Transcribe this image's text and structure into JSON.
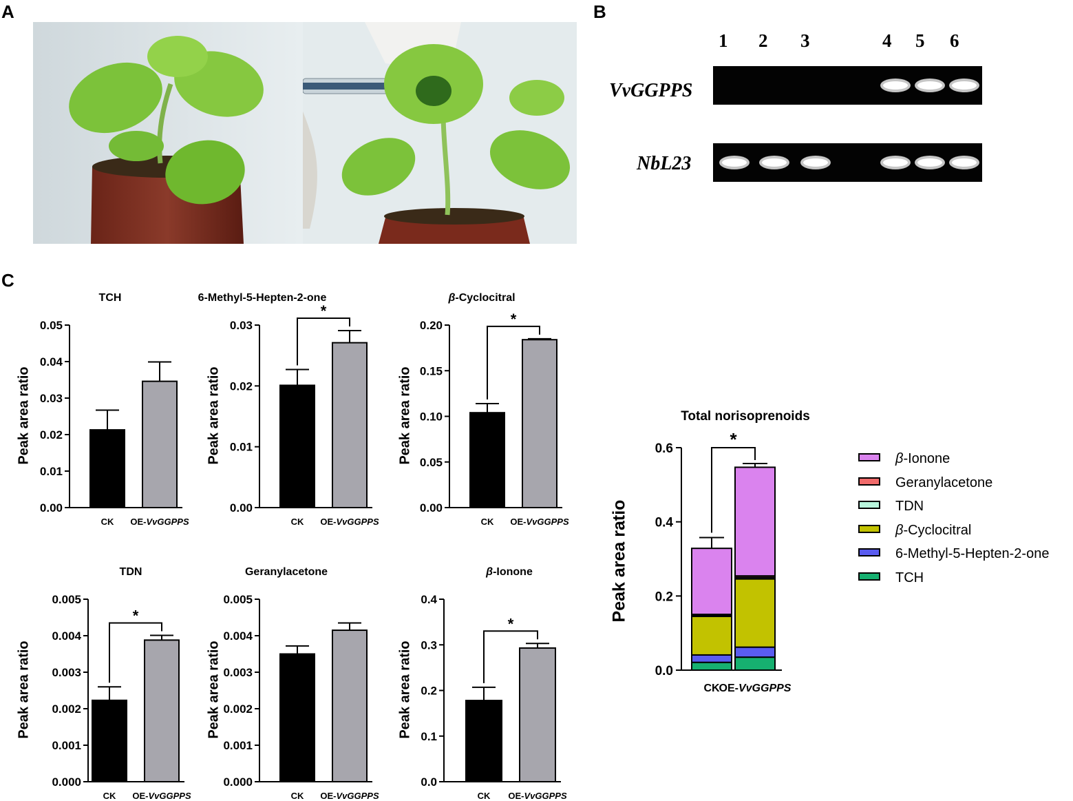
{
  "panels": {
    "a": "A",
    "b": "B",
    "c": "C"
  },
  "gel": {
    "lanes": [
      "1",
      "2",
      "3",
      "4",
      "5",
      "6"
    ],
    "rows": [
      {
        "label": "VvGGPPS",
        "bands": [
          0,
          0,
          0,
          1,
          1,
          1
        ]
      },
      {
        "label": "NbL23",
        "bands": [
          1,
          1,
          1,
          1,
          1,
          1
        ]
      }
    ]
  },
  "colors": {
    "ck": "#000000",
    "oe": "#a7a6ad",
    "b_ionone": "#da83ee",
    "geranylacetone": "#f06a6a",
    "tdn": "#b8f5dc",
    "b_cyclocitral": "#c2c200",
    "methylheptenone": "#5a5cf0",
    "tch": "#16b070"
  },
  "chart_data": [
    {
      "type": "bar",
      "title": "TCH",
      "ylabel": "Peak area ratio",
      "categories": [
        "CK",
        "OE-VvGGPPS"
      ],
      "category_prefix": [
        "CK",
        "OE-"
      ],
      "category_italic": [
        "",
        "VvGGPPS"
      ],
      "values": [
        0.0213,
        0.0346
      ],
      "errors": [
        0.0054,
        0.0053
      ],
      "ylim": [
        0,
        0.05
      ],
      "yticks": [
        "0.00",
        "0.01",
        "0.02",
        "0.03",
        "0.04",
        "0.05"
      ],
      "significance": ""
    },
    {
      "type": "bar",
      "title": "6-Methyl-5-Hepten-2-one",
      "ylabel": "Peak area ratio",
      "categories": [
        "CK",
        "OE-VvGGPPS"
      ],
      "category_prefix": [
        "CK",
        "OE-"
      ],
      "category_italic": [
        "",
        "VvGGPPS"
      ],
      "values": [
        0.0201,
        0.0271
      ],
      "errors": [
        0.0026,
        0.002
      ],
      "ylim": [
        0,
        0.03
      ],
      "yticks": [
        "0.00",
        "0.01",
        "0.02",
        "0.03"
      ],
      "significance": "*"
    },
    {
      "type": "bar",
      "title": "β-Cyclocitral",
      "ylabel": "Peak area ratio",
      "categories": [
        "CK",
        "OE-VvGGPPS"
      ],
      "category_prefix": [
        "CK",
        "OE-"
      ],
      "category_italic": [
        "",
        "VvGGPPS"
      ],
      "values": [
        0.104,
        0.184
      ],
      "errors": [
        0.01,
        0.001
      ],
      "ylim": [
        0,
        0.2
      ],
      "yticks": [
        "0.00",
        "0.05",
        "0.10",
        "0.15",
        "0.20"
      ],
      "significance": "*"
    },
    {
      "type": "bar",
      "title": "TDN",
      "ylabel": "Peak area ratio",
      "categories": [
        "CK",
        "OE-VvGGPPS"
      ],
      "category_prefix": [
        "CK",
        "OE-"
      ],
      "category_italic": [
        "",
        "VvGGPPS"
      ],
      "values": [
        0.00223,
        0.00388
      ],
      "errors": [
        0.00037,
        0.00013
      ],
      "ylim": [
        0,
        0.005
      ],
      "yticks": [
        "0.000",
        "0.001",
        "0.002",
        "0.003",
        "0.004",
        "0.005"
      ],
      "significance": "*"
    },
    {
      "type": "bar",
      "title": "Geranylacetone",
      "ylabel": "Peak area ratio",
      "categories": [
        "CK",
        "OE-VvGGPPS"
      ],
      "category_prefix": [
        "CK",
        "OE-"
      ],
      "category_italic": [
        "",
        "VvGGPPS"
      ],
      "values": [
        0.0035,
        0.00415
      ],
      "errors": [
        0.00022,
        0.0002
      ],
      "ylim": [
        0,
        0.005
      ],
      "yticks": [
        "0.000",
        "0.001",
        "0.002",
        "0.003",
        "0.004",
        "0.005"
      ],
      "significance": ""
    },
    {
      "type": "bar",
      "title": "β-Ionone",
      "ylabel": "Peak area ratio",
      "categories": [
        "CK",
        "OE-VvGGPPS"
      ],
      "category_prefix": [
        "CK",
        "OE-"
      ],
      "category_italic": [
        "",
        "VvGGPPS"
      ],
      "values": [
        0.178,
        0.293
      ],
      "errors": [
        0.029,
        0.01
      ],
      "ylim": [
        0,
        0.4
      ],
      "yticks": [
        "0.0",
        "0.1",
        "0.2",
        "0.3",
        "0.4"
      ],
      "significance": "*"
    },
    {
      "type": "bar",
      "stacked": true,
      "title": "Total norisoprenoids",
      "ylabel": "Peak area ratio",
      "categories": [
        "CK",
        "OE-VvGGPPS"
      ],
      "category_prefix": [
        "CK",
        "OE-"
      ],
      "category_italic": [
        "",
        "VvGGPPS"
      ],
      "ylim": [
        0,
        0.6
      ],
      "yticks": [
        "0.0",
        "0.2",
        "0.4",
        "0.6"
      ],
      "significance": "*",
      "total_errors": [
        0.029,
        0.01
      ],
      "series": [
        {
          "name": "TCH",
          "values": [
            0.021,
            0.035
          ],
          "color_key": "tch"
        },
        {
          "name": "6-Methyl-5-Hepten-2-one",
          "values": [
            0.02,
            0.027
          ],
          "color_key": "methylheptenone"
        },
        {
          "name": "β-Cyclocitral",
          "values": [
            0.104,
            0.184
          ],
          "color_key": "b_cyclocitral"
        },
        {
          "name": "TDN",
          "values": [
            0.002,
            0.004
          ],
          "color_key": "tdn"
        },
        {
          "name": "Geranylacetone",
          "values": [
            0.0035,
            0.0042
          ],
          "color_key": "geranylacetone"
        },
        {
          "name": "β-Ionone",
          "values": [
            0.178,
            0.293
          ],
          "color_key": "b_ionone"
        }
      ]
    }
  ],
  "legend": [
    {
      "prefix": "β",
      "rest": "-Ionone",
      "color_key": "b_ionone"
    },
    {
      "prefix": "",
      "rest": "Geranylacetone",
      "color_key": "geranylacetone"
    },
    {
      "prefix": "",
      "rest": "TDN",
      "color_key": "tdn"
    },
    {
      "prefix": "β",
      "rest": "-Cyclocitral",
      "color_key": "b_cyclocitral"
    },
    {
      "prefix": "",
      "rest": "6-Methyl-5-Hepten-2-one",
      "color_key": "methylheptenone"
    },
    {
      "prefix": "",
      "rest": "TCH",
      "color_key": "tch"
    }
  ]
}
